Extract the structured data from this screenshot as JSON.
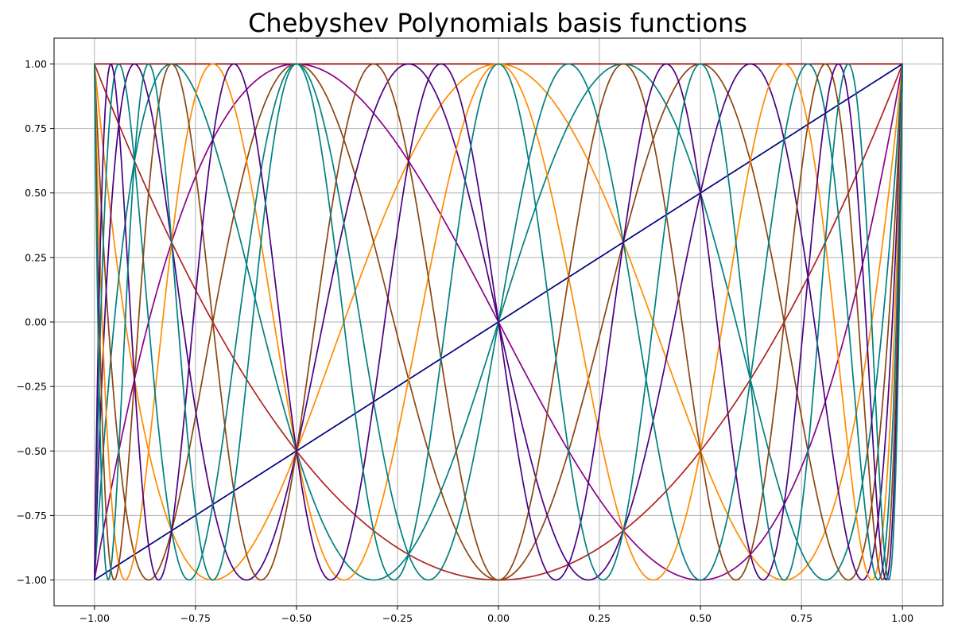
{
  "chart_data": {
    "type": "line",
    "title": "Chebyshev Polynomials basis functions",
    "xlabel": "",
    "ylabel": "",
    "xlim": [
      -1.1,
      1.1
    ],
    "ylim": [
      -1.1,
      1.1
    ],
    "x_ticks": [
      -1.0,
      -0.75,
      -0.5,
      -0.25,
      0.0,
      0.25,
      0.5,
      0.75,
      1.0
    ],
    "x_tick_labels": [
      "−1.00",
      "−0.75",
      "−0.50",
      "−0.25",
      "0.00",
      "0.25",
      "0.50",
      "0.75",
      "1.00"
    ],
    "y_ticks": [
      -1.0,
      -0.75,
      -0.5,
      -0.25,
      0.0,
      0.25,
      0.5,
      0.75,
      1.0
    ],
    "y_tick_labels": [
      "−1.00",
      "−0.75",
      "−0.50",
      "−0.25",
      "0.00",
      "0.25",
      "0.50",
      "0.75",
      "1.00"
    ],
    "grid": true,
    "legend": "none",
    "x_range": [
      -1.0,
      1.0
    ],
    "series": [
      {
        "degree": 0,
        "color": "#8b0000"
      },
      {
        "degree": 1,
        "color": "#000080"
      },
      {
        "degree": 2,
        "color": "#b22222"
      },
      {
        "degree": 3,
        "color": "#8b008b"
      },
      {
        "degree": 4,
        "color": "#ff8c00"
      },
      {
        "degree": 5,
        "color": "#008080"
      },
      {
        "degree": 6,
        "color": "#8b4513"
      },
      {
        "degree": 7,
        "color": "#4b0082"
      },
      {
        "degree": 8,
        "color": "#ff8c00"
      },
      {
        "degree": 9,
        "color": "#008080"
      },
      {
        "degree": 10,
        "color": "#8b4513"
      },
      {
        "degree": 11,
        "color": "#4b0082"
      },
      {
        "degree": 12,
        "color": "#008080"
      }
    ]
  }
}
